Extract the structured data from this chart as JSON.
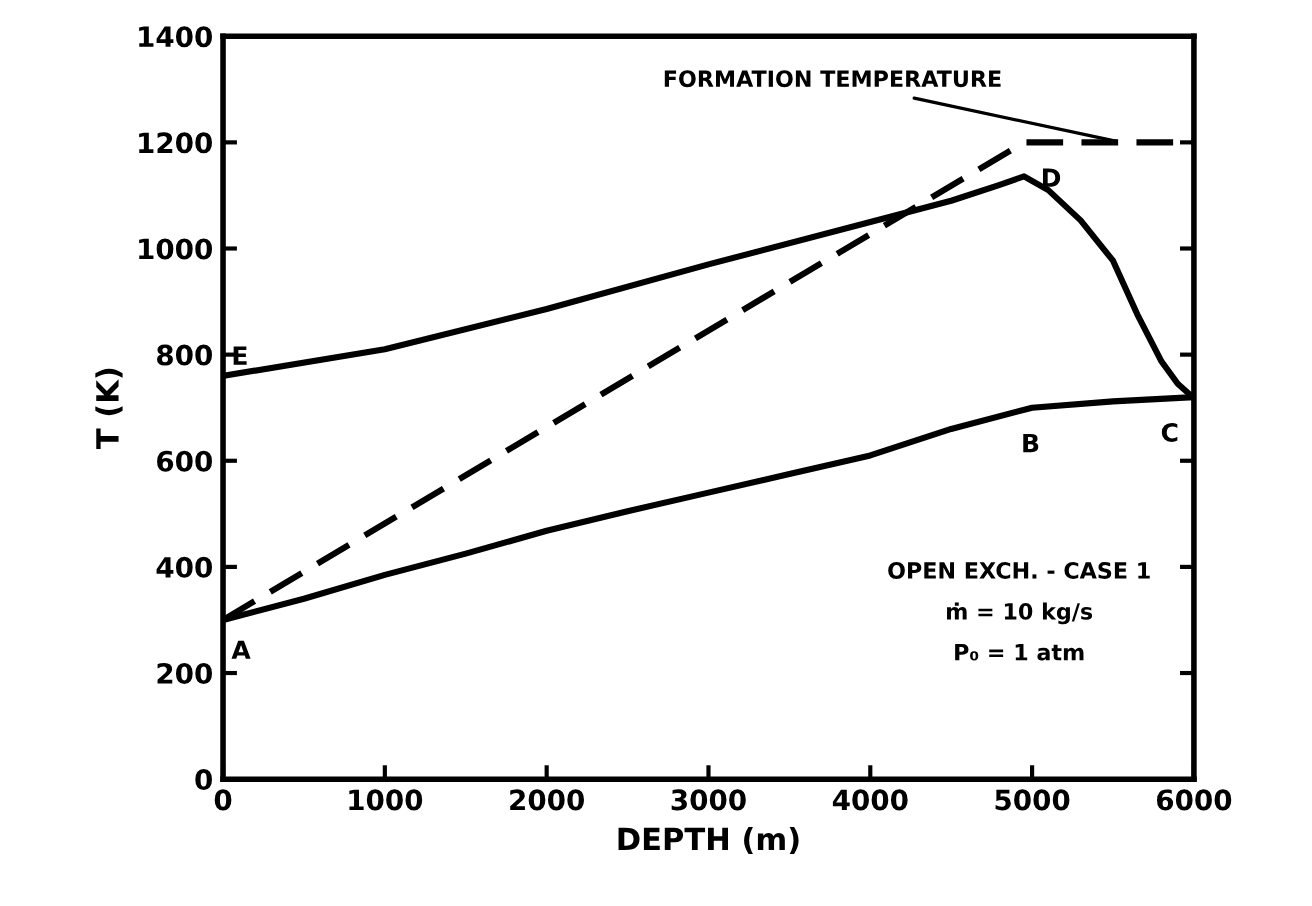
{
  "chart_data": {
    "type": "line",
    "xlabel": "DEPTH (m)",
    "ylabel": "T (K)",
    "xlim": [
      0,
      6000
    ],
    "xticks": [
      0,
      1000,
      2000,
      3000,
      4000,
      5000,
      6000
    ],
    "ylim": [
      0,
      1400
    ],
    "yticks": [
      0,
      200,
      400,
      600,
      800,
      1000,
      1200,
      1400
    ],
    "grid": false,
    "legend": false,
    "marker": "none",
    "series": [
      {
        "color": "#000000",
        "line_style": "solid",
        "x": [
          0,
          500,
          1000,
          1500,
          2000,
          2500,
          3000,
          3500,
          4000,
          4500,
          5000,
          5500,
          6000
        ],
        "values": [
          300,
          340,
          385,
          425,
          468,
          505,
          540,
          575,
          610,
          660,
          700,
          712,
          720
        ]
      },
      {
        "color": "#000000",
        "line_style": "solid",
        "x": [
          0,
          1000,
          2000,
          3000,
          4000,
          4500,
          4800,
          4950,
          5100,
          5300,
          5500,
          5650,
          5800,
          5900,
          6000
        ],
        "values": [
          760,
          810,
          886,
          970,
          1050,
          1090,
          1120,
          1136,
          1110,
          1053,
          977,
          876,
          787,
          745,
          718
        ]
      },
      {
        "color": "#000000",
        "line_style": "dashed",
        "x": [
          0,
          4950,
          6000
        ],
        "values": [
          300,
          1200,
          1200
        ]
      }
    ],
    "annotations": [
      {
        "text": "A",
        "x": 0,
        "y": 300
      },
      {
        "text": "B",
        "x": 5000,
        "y": 700
      },
      {
        "text": "C",
        "x": 6000,
        "y": 720
      },
      {
        "text": "D",
        "x": 4950,
        "y": 1200
      },
      {
        "text": "E",
        "x": 0,
        "y": 760
      },
      {
        "text": "FORMATION TEMPERATURE",
        "x": 5550,
        "y": 1200
      },
      "OPEN EXCH. - CASE 1",
      "ṁ = 10 kg/s",
      "P₀ = 1 atm"
    ]
  }
}
